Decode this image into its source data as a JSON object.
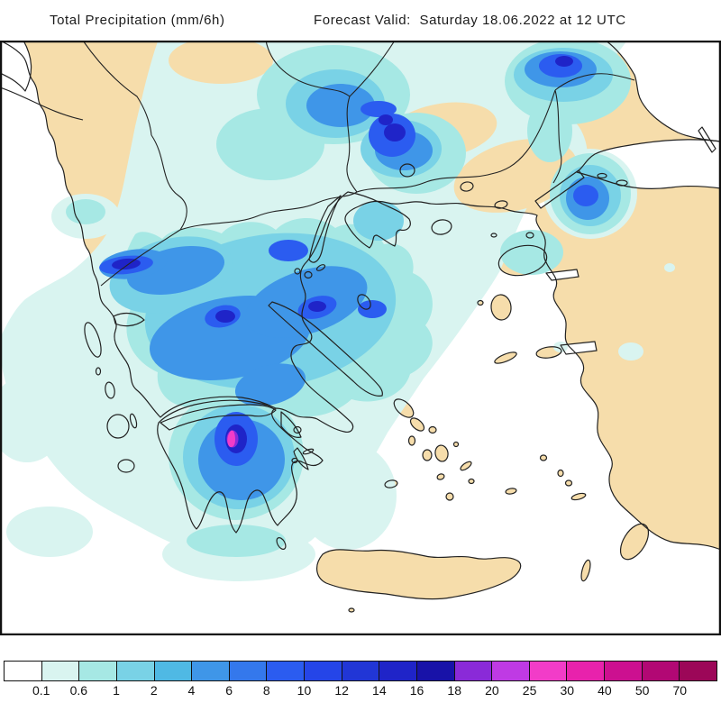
{
  "header": {
    "title_left": "Total Precipitation (mm/6h)",
    "title_right": "Forecast Valid:  Saturday 18.06.2022 at 12 UTC"
  },
  "legend": {
    "unit_implied": "mm/6h",
    "boundaries": [
      "0.1",
      "0.6",
      "1",
      "2",
      "4",
      "6",
      "8",
      "10",
      "12",
      "14",
      "16",
      "18",
      "20",
      "25",
      "30",
      "40",
      "50",
      "70"
    ],
    "cell_colors": [
      "#ffffff",
      "#d9f4f0",
      "#a6e8e4",
      "#79d2e6",
      "#4fb9e4",
      "#3f96e8",
      "#3478ec",
      "#2b5cf0",
      "#2545e8",
      "#2136d6",
      "#1f24c8",
      "#1812a8",
      "#8a2ad8",
      "#bf3ae4",
      "#f23cc8",
      "#e822ac",
      "#cc1090",
      "#b20874",
      "#9c0758"
    ]
  },
  "map": {
    "land_color": "#f6ddab",
    "sea_color": "#ffffff",
    "coastline_color": "#222222",
    "frame_color": "#111111",
    "peak_spot_colors": {
      "ring": "#8a2ad8",
      "core": "#f23cc8"
    }
  }
}
